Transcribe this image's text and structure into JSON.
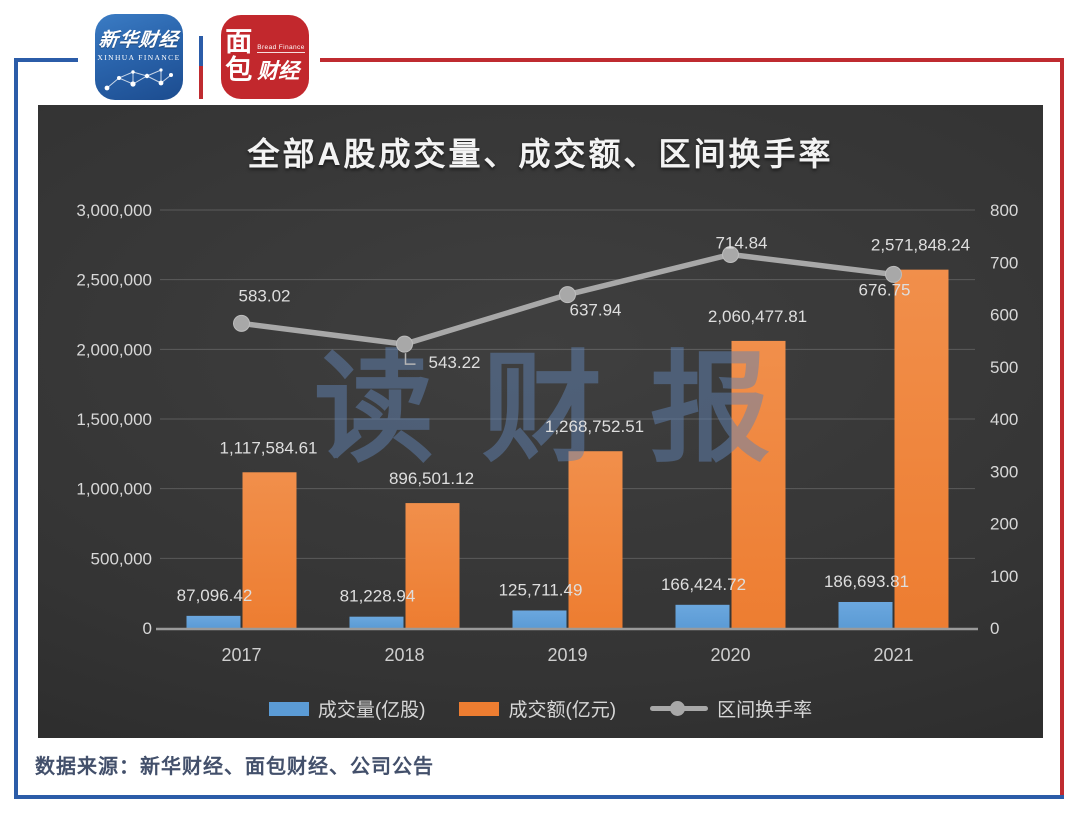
{
  "header": {
    "xinhua": {
      "cn": "新华财经",
      "en": "XINHUA FINANCE"
    },
    "bread": {
      "glyph1": "面",
      "glyph2": "包",
      "en": "Bread Finance",
      "cn": "财经"
    }
  },
  "chart": {
    "title": "全部A股成交量、成交额、区间换手率",
    "watermark": "读财报"
  },
  "chart_data": {
    "type": "bar+line",
    "title": "全部A股成交量、成交额、区间换手率",
    "categories": [
      "2017",
      "2018",
      "2019",
      "2020",
      "2021"
    ],
    "series": [
      {
        "name": "成交量(亿股)",
        "type": "bar",
        "axis": "left",
        "color": "#5b9bd5",
        "color_light": "#6ba7de",
        "values": [
          87096.42,
          81228.94,
          125711.49,
          166424.72,
          186693.81
        ]
      },
      {
        "name": "成交额(亿元)",
        "type": "bar",
        "axis": "left",
        "color": "#ed7d31",
        "color_light": "#f18f4b",
        "values": [
          1117584.61,
          896501.12,
          1268752.51,
          2060477.81,
          2571848.24
        ]
      },
      {
        "name": "区间换手率",
        "type": "line",
        "axis": "right",
        "color": "#a8a8a8",
        "values": [
          583.02,
          543.22,
          637.94,
          714.84,
          676.75
        ],
        "label_offsets": [
          {
            "dx": 23,
            "dy": -28
          },
          {
            "dx": 50,
            "dy": 18,
            "leader": true
          },
          {
            "dx": 28,
            "dy": 15
          },
          {
            "dx": 11,
            "dy": -12
          },
          {
            "dx": -9,
            "dy": 15
          }
        ]
      }
    ],
    "left_axis": {
      "min": 0,
      "max": 3000000,
      "step": 500000
    },
    "right_axis": {
      "min": 0,
      "max": 800,
      "step": 100
    },
    "grid": true,
    "legend_position": "bottom"
  },
  "colors": {
    "frame_blue": "#2b5ca8",
    "frame_red": "#bf2b30",
    "panel_background": "#343434",
    "gridline": "rgba(255,255,255,0.18)",
    "axis_line": "#9a9a9a",
    "tick_label": "#d8d8d8",
    "data_label": "#dedede",
    "watermark": "rgba(96,130,178,0.5)"
  },
  "footer": {
    "source": "数据来源：新华财经、面包财经、公司公告"
  }
}
